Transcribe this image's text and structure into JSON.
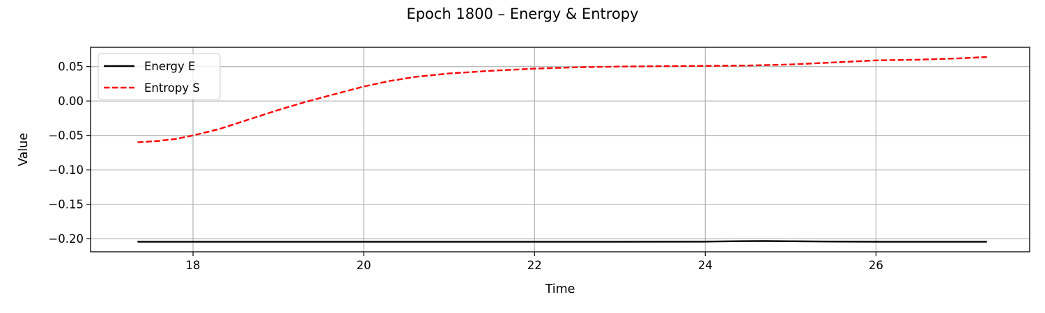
{
  "chart_data": {
    "type": "line",
    "title": "Epoch 1800 – Energy & Entropy",
    "xlabel": "Time",
    "ylabel": "Value",
    "xlim": [
      16.8,
      27.8
    ],
    "ylim": [
      -0.219,
      0.078
    ],
    "xticks": [
      18,
      20,
      22,
      24,
      26
    ],
    "xtick_labels": [
      "18",
      "20",
      "22",
      "24",
      "26"
    ],
    "yticks": [
      0.05,
      0.0,
      -0.05,
      -0.1,
      -0.15,
      -0.2
    ],
    "ytick_labels": [
      "0.05",
      "0.00",
      "−0.05",
      "−0.10",
      "−0.15",
      "−0.20"
    ],
    "grid": true,
    "legend_position": "top-left",
    "series": [
      {
        "name": "Energy E",
        "color": "#000000",
        "style": "solid",
        "x": [
          17.35,
          18.0,
          19.0,
          20.0,
          21.0,
          22.0,
          23.0,
          24.0,
          24.4,
          24.7,
          25.0,
          25.5,
          26.0,
          27.0,
          27.3
        ],
        "y": [
          -0.2045,
          -0.2045,
          -0.2045,
          -0.2045,
          -0.2045,
          -0.2045,
          -0.2045,
          -0.2043,
          -0.2035,
          -0.2033,
          -0.2036,
          -0.2042,
          -0.2045,
          -0.2045,
          -0.2045
        ]
      },
      {
        "name": "Entropy S",
        "color": "#ff0000",
        "style": "dashed",
        "x": [
          17.35,
          17.6,
          17.8,
          18.0,
          18.3,
          18.6,
          19.0,
          19.3,
          19.6,
          20.0,
          20.3,
          20.6,
          21.0,
          21.5,
          22.0,
          22.5,
          23.0,
          23.5,
          24.0,
          24.5,
          25.0,
          25.5,
          26.0,
          26.5,
          27.0,
          27.3
        ],
        "y": [
          -0.06,
          -0.058,
          -0.055,
          -0.05,
          -0.041,
          -0.029,
          -0.013,
          -0.002,
          0.008,
          0.021,
          0.029,
          0.035,
          0.04,
          0.044,
          0.047,
          0.049,
          0.05,
          0.0505,
          0.051,
          0.0515,
          0.053,
          0.056,
          0.059,
          0.06,
          0.062,
          0.064
        ]
      }
    ]
  }
}
